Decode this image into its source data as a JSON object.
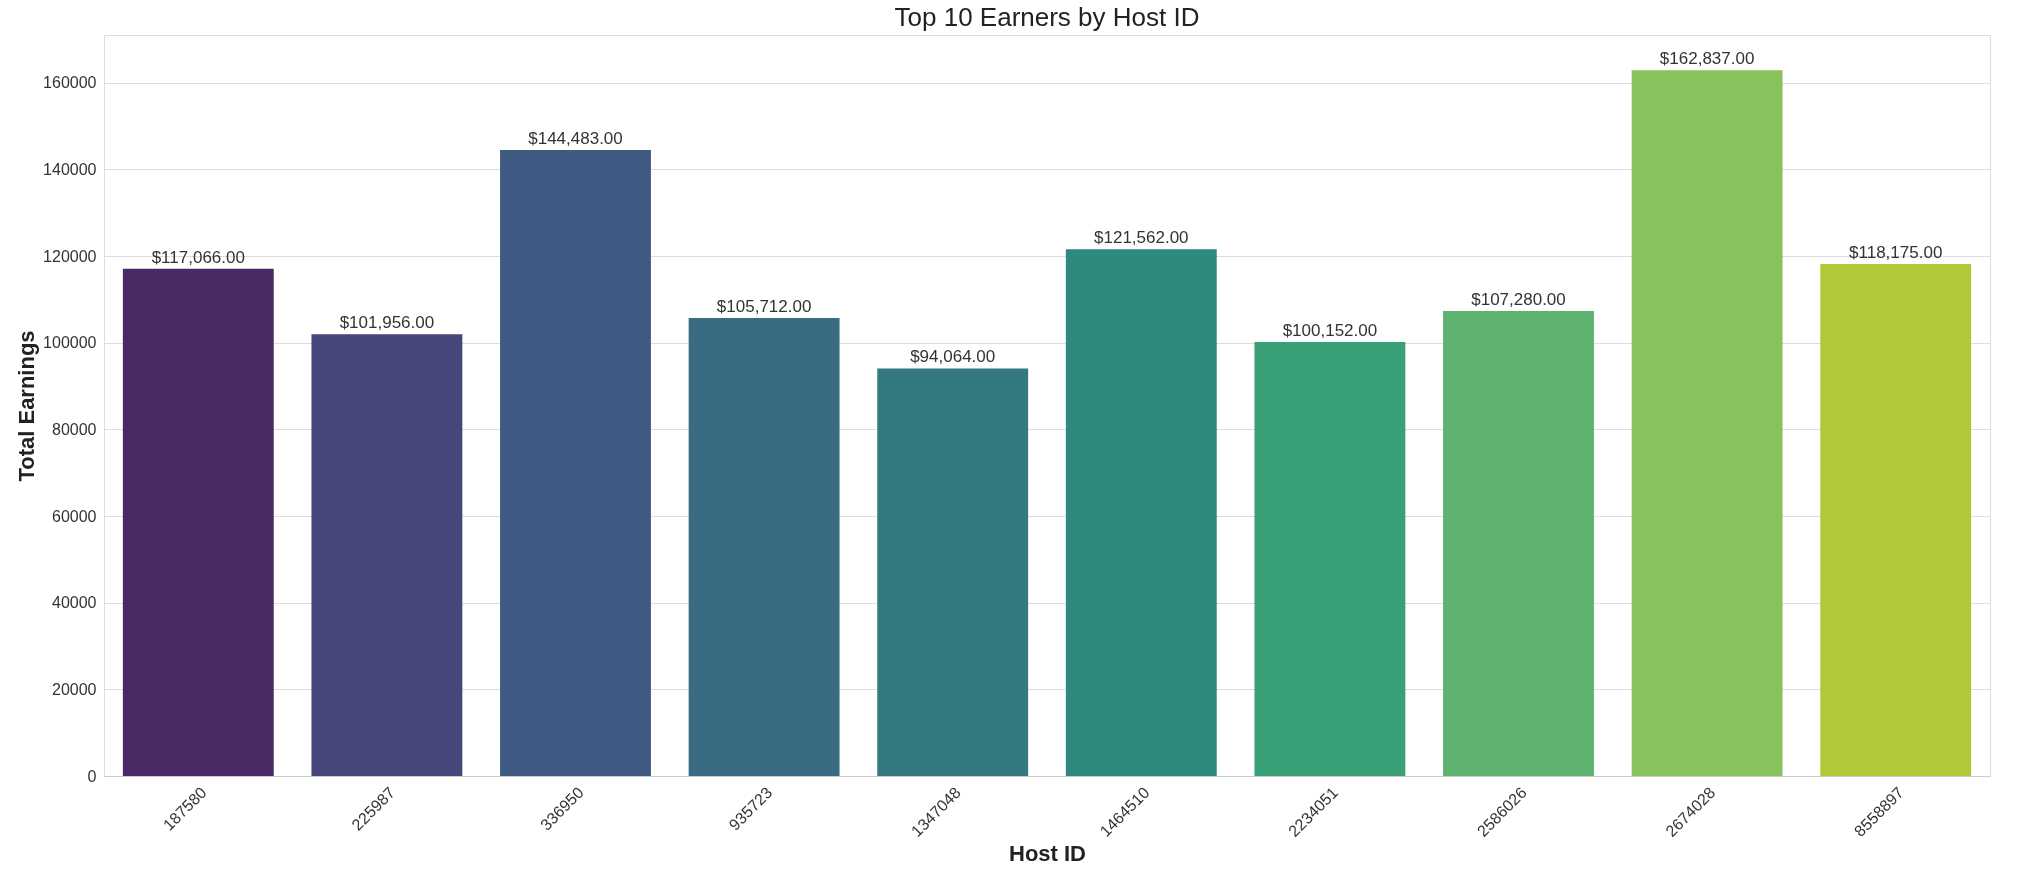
{
  "chart_data": {
    "type": "bar",
    "title": "Top 10 Earners by Host ID",
    "xlabel": "Host ID",
    "ylabel": "Total Earnings",
    "categories": [
      "187580",
      "225987",
      "336950",
      "935723",
      "1347048",
      "1464510",
      "2234051",
      "2586026",
      "2674028",
      "8558897"
    ],
    "values": [
      117066,
      101956,
      144483,
      105712,
      94064,
      121562,
      100152,
      107280,
      162837,
      118175
    ],
    "colors": [
      "#4a2a64",
      "#46467a",
      "#3f5a82",
      "#396b82",
      "#327a80",
      "#2e8a7c",
      "#3aa078",
      "#5db26f",
      "#88c25c",
      "#b1c83a"
    ],
    "value_labels": [
      "$117,066.00",
      "$101,956.00",
      "$144,483.00",
      "$105,712.00",
      "$94,064.00",
      "$121,562.00",
      "$100,152.00",
      "$107,280.00",
      "$162,837.00",
      "$118,175.00"
    ],
    "ylim": [
      0,
      171000
    ],
    "yticks": [
      0,
      20000,
      40000,
      60000,
      80000,
      100000,
      120000,
      140000,
      160000
    ],
    "grid": "y"
  }
}
